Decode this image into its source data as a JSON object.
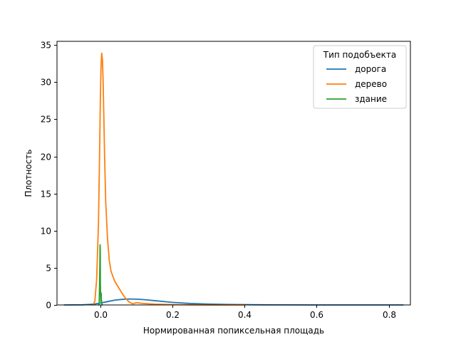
{
  "chart_data": {
    "type": "line",
    "xlabel": "Нормированная попиксельная площадь",
    "ylabel": "Плотность",
    "xlim": [
      -0.12,
      0.86
    ],
    "ylim": [
      0,
      35.5
    ],
    "xticks": [
      0.0,
      0.2,
      0.4,
      0.6,
      0.8
    ],
    "xtick_labels": [
      "0.0",
      "0.2",
      "0.4",
      "0.6",
      "0.8"
    ],
    "yticks": [
      0,
      5,
      10,
      15,
      20,
      25,
      30,
      35
    ],
    "ytick_labels": [
      "0",
      "5",
      "10",
      "15",
      "20",
      "25",
      "30",
      "35"
    ],
    "grid": false,
    "legend": {
      "title": "Тип подобъекта",
      "placement": "top-right"
    },
    "series": [
      {
        "name": "дорога",
        "color": "#1f77b4",
        "x": [
          -0.1,
          -0.05,
          -0.02,
          0.0,
          0.02,
          0.04,
          0.06,
          0.08,
          0.1,
          0.12,
          0.15,
          0.2,
          0.25,
          0.3,
          0.35,
          0.4,
          0.45,
          0.5,
          0.6,
          0.7,
          0.8,
          0.84
        ],
        "y": [
          0.0,
          0.02,
          0.1,
          0.25,
          0.45,
          0.65,
          0.75,
          0.8,
          0.78,
          0.72,
          0.58,
          0.35,
          0.2,
          0.12,
          0.07,
          0.04,
          0.02,
          0.01,
          0.0,
          0.0,
          0.0,
          0.0
        ]
      },
      {
        "name": "дерево",
        "color": "#ff7f0e",
        "x": [
          -0.02,
          -0.015,
          -0.01,
          -0.005,
          -0.002,
          0.0,
          0.002,
          0.004,
          0.006,
          0.008,
          0.01,
          0.012,
          0.015,
          0.02,
          0.025,
          0.03,
          0.04,
          0.05,
          0.06,
          0.07,
          0.08,
          0.09,
          0.1,
          0.12,
          0.15,
          0.2,
          0.25,
          0.3,
          0.4
        ],
        "y": [
          0.0,
          0.5,
          3.5,
          11.0,
          20.0,
          27.0,
          32.0,
          33.9,
          33.0,
          30.0,
          25.0,
          20.0,
          14.0,
          9.0,
          6.0,
          4.5,
          3.2,
          2.4,
          1.6,
          0.9,
          0.4,
          0.15,
          0.3,
          0.2,
          0.1,
          0.05,
          0.02,
          0.0,
          0.0
        ]
      },
      {
        "name": "здание",
        "color": "#2ca02c",
        "x": [
          -0.004,
          -0.003,
          -0.002,
          -0.001,
          -0.0005,
          0.0,
          0.0003,
          0.0008,
          0.0012,
          0.0015,
          0.002,
          0.0025,
          0.0028,
          0.003,
          0.0035,
          0.004,
          0.005,
          0.006
        ],
        "y": [
          0.0,
          0.3,
          2.5,
          6.0,
          8.1,
          7.5,
          3.0,
          1.5,
          1.2,
          0.5,
          1.0,
          1.6,
          1.3,
          0.4,
          0.6,
          0.2,
          0.05,
          0.0
        ]
      }
    ]
  }
}
